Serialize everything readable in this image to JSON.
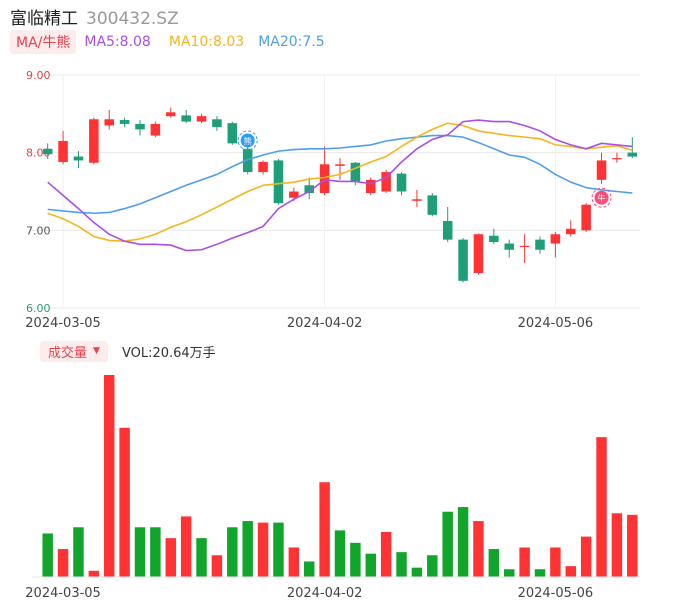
{
  "header": {
    "name": "富临精工",
    "code": "300432.SZ"
  },
  "ma_bar": {
    "badge": "MA/牛熊",
    "items": [
      {
        "label": "MA5:8.08",
        "color": "#a94ee8"
      },
      {
        "label": "MA10:8.03",
        "color": "#f5b51c"
      },
      {
        "label": "MA20:7.5",
        "color": "#4f9eec"
      }
    ]
  },
  "volume_bar": {
    "badge": "成交量",
    "text": "VOL:20.64万手"
  },
  "colors": {
    "up": "#ff3333",
    "down": "#1f9e7a",
    "vol_up": "#ff3333",
    "vol_down": "#11a52b",
    "grid": "#e8e8e8",
    "axis_label": "#e8414d",
    "axis_label_low": "#2a9d6e"
  },
  "chart_data": {
    "type": "candlestick",
    "price_axis": {
      "ylim": [
        6.0,
        9.0
      ],
      "ticks": [
        "9.00",
        "8.00",
        "7.00",
        "6.00"
      ]
    },
    "x_ticks": [
      {
        "index": 1,
        "label": "2024-03-05"
      },
      {
        "index": 18,
        "label": "2024-04-02"
      },
      {
        "index": 33,
        "label": "2024-05-06"
      }
    ],
    "candles": [
      {
        "o": 8.05,
        "c": 7.98,
        "h": 8.12,
        "l": 7.92
      },
      {
        "o": 7.88,
        "c": 8.15,
        "h": 8.28,
        "l": 7.85
      },
      {
        "o": 7.95,
        "c": 7.9,
        "h": 8.02,
        "l": 7.8
      },
      {
        "o": 7.87,
        "c": 8.43,
        "h": 8.45,
        "l": 7.85
      },
      {
        "o": 8.35,
        "c": 8.43,
        "h": 8.55,
        "l": 8.3
      },
      {
        "o": 8.42,
        "c": 8.37,
        "h": 8.45,
        "l": 8.33
      },
      {
        "o": 8.37,
        "c": 8.3,
        "h": 8.42,
        "l": 8.22
      },
      {
        "o": 8.22,
        "c": 8.37,
        "h": 8.4,
        "l": 8.2
      },
      {
        "o": 8.47,
        "c": 8.52,
        "h": 8.58,
        "l": 8.45
      },
      {
        "o": 8.48,
        "c": 8.4,
        "h": 8.55,
        "l": 8.38
      },
      {
        "o": 8.4,
        "c": 8.47,
        "h": 8.5,
        "l": 8.38
      },
      {
        "o": 8.43,
        "c": 8.33,
        "h": 8.47,
        "l": 8.28
      },
      {
        "o": 8.38,
        "c": 8.12,
        "h": 8.4,
        "l": 8.1
      },
      {
        "o": 8.05,
        "c": 7.75,
        "h": 8.08,
        "l": 7.72
      },
      {
        "o": 7.75,
        "c": 7.88,
        "h": 7.9,
        "l": 7.72
      },
      {
        "o": 7.9,
        "c": 7.35,
        "h": 7.92,
        "l": 7.33
      },
      {
        "o": 7.42,
        "c": 7.5,
        "h": 7.55,
        "l": 7.38
      },
      {
        "o": 7.58,
        "c": 7.48,
        "h": 7.68,
        "l": 7.4
      },
      {
        "o": 7.48,
        "c": 7.85,
        "h": 8.08,
        "l": 7.45
      },
      {
        "o": 7.83,
        "c": 7.85,
        "h": 7.93,
        "l": 7.65
      },
      {
        "o": 7.87,
        "c": 7.63,
        "h": 7.88,
        "l": 7.58
      },
      {
        "o": 7.48,
        "c": 7.65,
        "h": 7.68,
        "l": 7.45
      },
      {
        "o": 7.5,
        "c": 7.75,
        "h": 7.78,
        "l": 7.48
      },
      {
        "o": 7.73,
        "c": 7.5,
        "h": 7.75,
        "l": 7.45
      },
      {
        "o": 7.38,
        "c": 7.4,
        "h": 7.52,
        "l": 7.3
      },
      {
        "o": 7.45,
        "c": 7.2,
        "h": 7.48,
        "l": 7.18
      },
      {
        "o": 7.12,
        "c": 6.88,
        "h": 7.3,
        "l": 6.85
      },
      {
        "o": 6.88,
        "c": 6.35,
        "h": 6.9,
        "l": 6.33
      },
      {
        "o": 6.45,
        "c": 6.95,
        "h": 6.96,
        "l": 6.43
      },
      {
        "o": 6.93,
        "c": 6.85,
        "h": 7.02,
        "l": 6.82
      },
      {
        "o": 6.83,
        "c": 6.75,
        "h": 6.88,
        "l": 6.65
      },
      {
        "o": 6.79,
        "c": 6.8,
        "h": 6.95,
        "l": 6.58
      },
      {
        "o": 6.88,
        "c": 6.75,
        "h": 6.92,
        "l": 6.7
      },
      {
        "o": 6.83,
        "c": 6.95,
        "h": 6.98,
        "l": 6.65
      },
      {
        "o": 6.95,
        "c": 7.02,
        "h": 7.13,
        "l": 6.92
      },
      {
        "o": 7.0,
        "c": 7.33,
        "h": 7.35,
        "l": 6.98
      },
      {
        "o": 7.65,
        "c": 7.9,
        "h": 8.0,
        "l": 7.6
      },
      {
        "o": 7.93,
        "c": 7.93,
        "h": 8.0,
        "l": 7.87
      },
      {
        "o": 8.0,
        "c": 7.95,
        "h": 8.2,
        "l": 7.93
      }
    ],
    "ma5": [
      7.62,
      7.45,
      7.28,
      7.1,
      6.95,
      6.86,
      6.82,
      6.82,
      6.81,
      6.74,
      6.75,
      6.82,
      6.9,
      6.97,
      7.05,
      7.28,
      7.4,
      7.5,
      7.65,
      7.63,
      7.63,
      7.6,
      7.68,
      7.88,
      8.05,
      8.17,
      8.23,
      8.4,
      8.42,
      8.4,
      8.4,
      8.35,
      8.28,
      8.17,
      8.1,
      8.05,
      8.12,
      8.1,
      8.08
    ],
    "ma10": [
      7.22,
      7.15,
      7.05,
      6.92,
      6.87,
      6.86,
      6.89,
      6.95,
      7.04,
      7.11,
      7.2,
      7.3,
      7.4,
      7.5,
      7.58,
      7.6,
      7.62,
      7.66,
      7.68,
      7.72,
      7.8,
      7.88,
      7.95,
      8.08,
      8.2,
      8.3,
      8.38,
      8.35,
      8.28,
      8.25,
      8.22,
      8.2,
      8.18,
      8.1,
      8.08,
      8.05,
      8.07,
      8.09,
      8.03
    ],
    "ma20": [
      7.27,
      7.25,
      7.23,
      7.22,
      7.23,
      7.28,
      7.34,
      7.42,
      7.5,
      7.58,
      7.65,
      7.72,
      7.82,
      7.91,
      7.97,
      8.02,
      8.04,
      8.05,
      8.05,
      8.06,
      8.08,
      8.1,
      8.15,
      8.18,
      8.2,
      8.22,
      8.22,
      8.2,
      8.13,
      8.05,
      7.97,
      7.94,
      7.85,
      7.72,
      7.62,
      7.55,
      7.52,
      7.5,
      7.48
    ],
    "volume": {
      "values": [
        28,
        18,
        32,
        4,
        130,
        96,
        32,
        32,
        25,
        39,
        25,
        14,
        32,
        36,
        35,
        35,
        19,
        10,
        61,
        30,
        22,
        15,
        29,
        16,
        6,
        14,
        42,
        45,
        36,
        18,
        5,
        19,
        5,
        19,
        7,
        26,
        90,
        41,
        40
      ],
      "up": [
        false,
        true,
        false,
        true,
        true,
        true,
        false,
        false,
        true,
        true,
        false,
        true,
        false,
        false,
        true,
        false,
        true,
        false,
        true,
        false,
        false,
        false,
        true,
        false,
        false,
        false,
        false,
        false,
        true,
        false,
        false,
        true,
        false,
        true,
        true,
        true,
        true,
        true,
        true
      ]
    },
    "markers": [
      {
        "index": 13,
        "label": "熊",
        "color": "#2e9cf0"
      },
      {
        "index": 36,
        "label": "牛",
        "color": "#ff4d7a"
      }
    ]
  }
}
